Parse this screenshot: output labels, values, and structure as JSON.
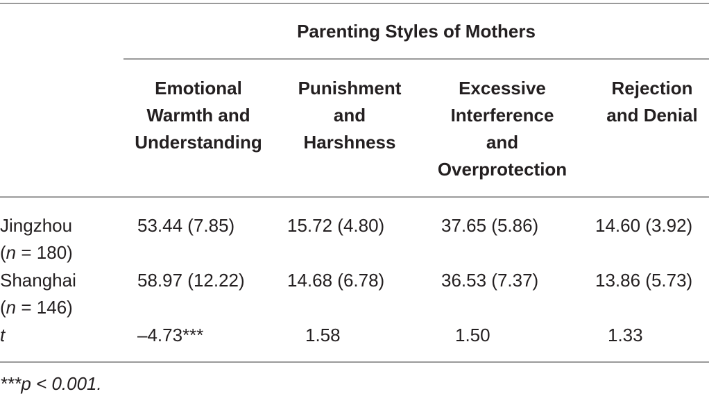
{
  "group_header": "Parenting Styles of Mothers",
  "columns": [
    [
      "Emotional",
      "Warmth and",
      "Understanding"
    ],
    [
      "Punishment",
      "and",
      "Harshness"
    ],
    [
      "Excessive",
      "Interference",
      "and",
      "Overprotection"
    ],
    [
      "Rejection",
      "and Denial"
    ]
  ],
  "rows": [
    {
      "label": "Jingzhou",
      "n_prefix": "(",
      "n_italic": "n",
      "n_rest": " = 180)",
      "values": [
        "53.44 (7.85)",
        "15.72 (4.80)",
        "37.65 (5.86)",
        "14.60 (3.92)"
      ]
    },
    {
      "label": "Shanghai",
      "n_prefix": "(",
      "n_italic": "n",
      "n_rest": " = 146)",
      "values": [
        "58.97 (12.22)",
        "14.68 (6.78)",
        "36.53 (7.37)",
        "13.86 (5.73)"
      ]
    },
    {
      "label": "t",
      "values": [
        "–4.73***",
        "1.58",
        "1.50",
        "1.33"
      ]
    }
  ],
  "footnote": "***p < 0.001."
}
